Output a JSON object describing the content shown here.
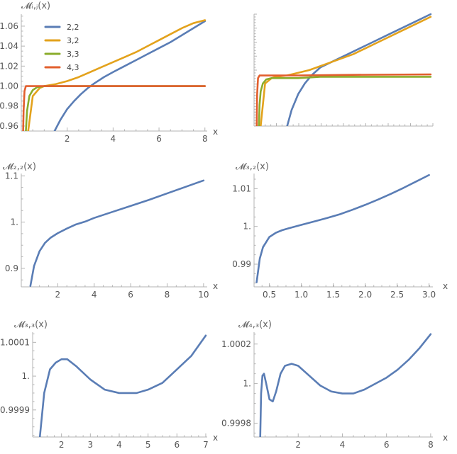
{
  "colors": {
    "blue": "#5a7db5",
    "orange": "#e3a21c",
    "green": "#8aac2b",
    "red": "#e25f2e"
  },
  "chart_data": [
    {
      "type": "line",
      "ylabel": "𝓜ᵢ,ⱼ(x)",
      "xlabel": "x",
      "xlim": [
        0,
        8.1
      ],
      "ylim": [
        0.955,
        1.072
      ],
      "xticks": [
        2,
        4,
        6,
        8
      ],
      "yticks": [
        0.96,
        0.98,
        1.0,
        1.02,
        1.04,
        1.06
      ],
      "ytick_labels": [
        "0.96",
        "0.98",
        "1.00",
        "1.02",
        "1.04",
        "1.06"
      ],
      "legend_position": "top-left",
      "series": [
        {
          "name": "2,2",
          "color": "#5a7db5",
          "x": [
            1.45,
            1.7,
            2.0,
            2.3,
            2.6,
            2.9,
            3.2,
            3.6,
            4.0,
            4.5,
            5.0,
            5.5,
            6.0,
            6.5,
            7.0,
            7.5,
            8.0
          ],
          "y": [
            0.955,
            0.966,
            0.977,
            0.985,
            0.992,
            0.998,
            1.003,
            1.009,
            1.014,
            1.02,
            1.026,
            1.032,
            1.038,
            1.044,
            1.051,
            1.058,
            1.065
          ]
        },
        {
          "name": "3,2",
          "color": "#e3a21c",
          "x": [
            0.3,
            0.5,
            0.8,
            1.0,
            1.5,
            2.0,
            2.5,
            3.0,
            3.5,
            4.0,
            4.5,
            5.0,
            5.5,
            6.0,
            6.5,
            7.0,
            7.5,
            8.0
          ],
          "y": [
            0.955,
            0.99,
            0.998,
            1.0,
            1.002,
            1.005,
            1.009,
            1.014,
            1.019,
            1.024,
            1.029,
            1.034,
            1.04,
            1.046,
            1.052,
            1.058,
            1.063,
            1.066
          ]
        },
        {
          "name": "3,3",
          "color": "#8aac2b",
          "x": [
            0.2,
            0.25,
            0.35,
            0.5,
            0.7,
            1.0,
            1.5,
            2.0,
            4.0,
            8.0
          ],
          "y": [
            0.955,
            0.975,
            0.99,
            0.996,
            0.999,
            1.0,
            1.0,
            1.0,
            1.0,
            1.0
          ]
        },
        {
          "name": "4,3",
          "color": "#e25f2e",
          "x": [
            0.08,
            0.1,
            0.14,
            0.2,
            0.35,
            0.6,
            1.0,
            2.0,
            4.0,
            8.0
          ],
          "y": [
            0.955,
            0.975,
            0.995,
            1.0,
            1.0,
            1.0,
            1.0,
            1.0,
            1.0,
            1.0
          ]
        }
      ]
    },
    {
      "type": "line",
      "ylabel": "",
      "xlabel": "",
      "xlim": [
        0,
        8.1
      ],
      "ylim": [
        0.984,
        1.026
      ],
      "series": [
        {
          "name": "2,2",
          "color": "#5a7db5",
          "x": [
            1.5,
            1.7,
            2.0,
            2.3,
            2.6,
            3.0,
            3.5,
            4.0,
            4.5,
            5.0,
            5.5,
            6.0,
            6.5,
            7.0,
            7.5,
            8.0
          ],
          "y": [
            0.984,
            0.99,
            0.996,
            1.0,
            1.003,
            1.006,
            1.008,
            1.01,
            1.012,
            1.014,
            1.016,
            1.018,
            1.02,
            1.022,
            1.024,
            1.026
          ]
        },
        {
          "name": "3,2",
          "color": "#e3a21c",
          "x": [
            0.3,
            0.5,
            0.8,
            1.0,
            1.5,
            2.0,
            2.5,
            3.0,
            3.5,
            4.0,
            4.5,
            5.0,
            5.5,
            6.0,
            6.5,
            7.0,
            7.5,
            8.0
          ],
          "y": [
            0.984,
            1.0,
            1.002,
            1.0025,
            1.003,
            1.004,
            1.005,
            1.0065,
            1.008,
            1.0095,
            1.011,
            1.013,
            1.015,
            1.017,
            1.019,
            1.021,
            1.023,
            1.025
          ]
        },
        {
          "name": "3,3",
          "color": "#8aac2b",
          "x": [
            0.22,
            0.25,
            0.3,
            0.4,
            0.55,
            0.8,
            1.2,
            2.0,
            3.0,
            5.0,
            8.0
          ],
          "y": [
            0.984,
            0.992,
            0.997,
            1.0,
            1.0015,
            1.002,
            1.002,
            1.002,
            1.0025,
            1.0025,
            1.0025
          ]
        },
        {
          "name": "4,3",
          "color": "#e25f2e",
          "x": [
            0.12,
            0.14,
            0.18,
            0.25,
            0.35,
            0.6,
            1.0,
            2.0,
            4.0,
            8.0
          ],
          "y": [
            0.984,
            0.996,
            1.002,
            1.003,
            1.003,
            1.003,
            1.003,
            1.003,
            1.0032,
            1.0034
          ]
        }
      ]
    },
    {
      "type": "line",
      "ylabel": "𝓜₂,₂(x)",
      "xlabel": "x",
      "xlim": [
        0,
        10.2
      ],
      "ylim": [
        0.86,
        1.105
      ],
      "xticks": [
        2,
        4,
        6,
        8,
        10
      ],
      "yticks": [
        0.9,
        1.0,
        1.1
      ],
      "ytick_labels": [
        "0.9",
        "1.",
        "1.1"
      ],
      "series": [
        {
          "name": "",
          "color": "#5a7db5",
          "x": [
            0.5,
            0.7,
            1.0,
            1.3,
            1.6,
            2.0,
            2.5,
            3.0,
            3.5,
            4.0,
            5.0,
            6.0,
            7.0,
            8.0,
            9.0,
            10.0
          ],
          "y": [
            0.862,
            0.905,
            0.937,
            0.955,
            0.966,
            0.976,
            0.986,
            0.995,
            1.001,
            1.009,
            1.022,
            1.035,
            1.048,
            1.062,
            1.076,
            1.09
          ]
        }
      ]
    },
    {
      "type": "line",
      "ylabel": "𝓜₃,₂(x)",
      "xlabel": "x",
      "xlim": [
        0.26,
        3.06
      ],
      "ylim": [
        0.984,
        1.014
      ],
      "xticks": [
        0.5,
        1.0,
        1.5,
        2.0,
        2.5,
        3.0
      ],
      "yticks": [
        0.99,
        1.0,
        1.01
      ],
      "ytick_labels": [
        "0.99",
        "1.",
        "1.01"
      ],
      "series": [
        {
          "name": "",
          "color": "#5a7db5",
          "x": [
            0.3,
            0.35,
            0.4,
            0.5,
            0.6,
            0.7,
            0.8,
            1.0,
            1.2,
            1.4,
            1.6,
            1.8,
            2.0,
            2.2,
            2.4,
            2.6,
            2.8,
            3.0
          ],
          "y": [
            0.9852,
            0.9915,
            0.9945,
            0.9972,
            0.9983,
            0.999,
            0.9995,
            1.0004,
            1.0013,
            1.0022,
            1.0032,
            1.0044,
            1.0057,
            1.0071,
            1.0086,
            1.0102,
            1.0119,
            1.0136
          ]
        }
      ]
    },
    {
      "type": "line",
      "ylabel": "𝓜₃,₃(x)",
      "xlabel": "x",
      "xlim": [
        1.0,
        7.05
      ],
      "ylim": [
        0.99982,
        1.00013
      ],
      "xticks": [
        2,
        3,
        4,
        5,
        6,
        7
      ],
      "yticks": [
        0.9999,
        1.0,
        1.0001
      ],
      "ytick_labels": [
        "0.9999",
        "1.",
        "1.0001"
      ],
      "series": [
        {
          "name": "",
          "color": "#5a7db5",
          "x": [
            1.25,
            1.4,
            1.6,
            1.8,
            2.0,
            2.2,
            2.5,
            3.0,
            3.5,
            4.0,
            4.3,
            4.6,
            5.0,
            5.5,
            6.0,
            6.5,
            7.0
          ],
          "y": [
            0.99982,
            0.99995,
            1.00002,
            1.00004,
            1.00005,
            1.00005,
            1.00003,
            0.99999,
            0.99996,
            0.99995,
            0.99995,
            0.99995,
            0.99996,
            0.99998,
            1.00002,
            1.00006,
            1.00012
          ]
        }
      ]
    },
    {
      "type": "line",
      "ylabel": "𝓜₄,₃(x)",
      "xlabel": "x",
      "xlim": [
        0,
        8.1
      ],
      "ylim": [
        0.99973,
        1.00026
      ],
      "xticks": [
        2,
        4,
        6,
        8
      ],
      "yticks": [
        0.9998,
        1.0,
        1.0002
      ],
      "ytick_labels": [
        "0.9998",
        "1.",
        "1.0002"
      ],
      "series": [
        {
          "name": "",
          "color": "#5a7db5",
          "x": [
            0.28,
            0.32,
            0.38,
            0.45,
            0.55,
            0.7,
            0.85,
            1.0,
            1.2,
            1.4,
            1.7,
            2.0,
            2.5,
            3.0,
            3.5,
            4.0,
            4.5,
            5.0,
            5.5,
            6.0,
            6.5,
            7.0,
            7.5,
            8.0
          ],
          "y": [
            0.99973,
            0.99995,
            1.00004,
            1.00005,
            1.0,
            0.99992,
            0.99991,
            0.99996,
            1.00005,
            1.00009,
            1.0001,
            1.00009,
            1.00004,
            0.99999,
            0.99996,
            0.99995,
            0.99995,
            0.99997,
            1.0,
            1.00003,
            1.00007,
            1.00012,
            1.00018,
            1.00025
          ]
        }
      ]
    }
  ]
}
